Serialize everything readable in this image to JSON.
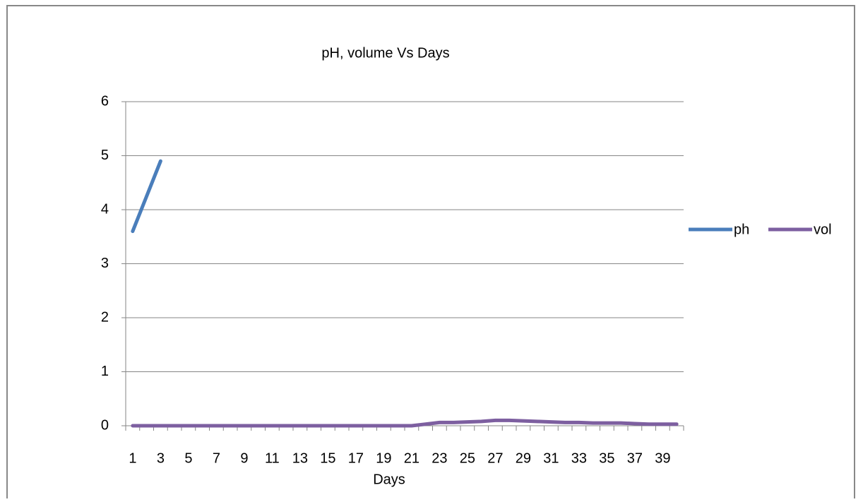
{
  "chart_data": {
    "type": "line",
    "title": "pH, volume Vs Days",
    "x_label": "Days",
    "categories": [
      1,
      null,
      3,
      null,
      5,
      null,
      7,
      null,
      9,
      null,
      11,
      null,
      13,
      null,
      15,
      null,
      17,
      null,
      19,
      null,
      21,
      null,
      23,
      null,
      25,
      null,
      27,
      null,
      29,
      null,
      31,
      null,
      33,
      null,
      35,
      null,
      37,
      null,
      39,
      null
    ],
    "series": [
      {
        "name": "ph",
        "color": "#4a7ebb",
        "values": [
          3.6,
          4.25,
          4.9,
          null,
          null,
          null,
          null,
          null,
          null,
          null,
          null,
          null,
          null,
          null,
          null,
          null,
          null,
          null,
          null,
          null,
          null,
          null,
          null,
          null,
          null,
          null,
          null,
          null,
          null,
          null,
          null,
          null,
          null,
          null,
          null,
          null,
          null,
          null,
          null,
          null
        ]
      },
      {
        "name": "vol",
        "color": "#7d5fa0",
        "values": [
          0,
          0,
          0,
          0,
          0,
          0,
          0,
          0,
          0,
          0,
          0,
          0,
          0,
          0,
          0,
          0,
          0,
          0,
          0,
          0,
          0,
          0.03,
          0.06,
          0.06,
          0.07,
          0.08,
          0.1,
          0.1,
          0.09,
          0.08,
          0.07,
          0.06,
          0.06,
          0.05,
          0.05,
          0.05,
          0.04,
          0.03,
          0.03,
          0.03
        ]
      }
    ],
    "ylim": [
      0,
      6
    ],
    "yticks": [
      0,
      1,
      2,
      3,
      4,
      5,
      6
    ],
    "grid": true,
    "legend": "right"
  }
}
